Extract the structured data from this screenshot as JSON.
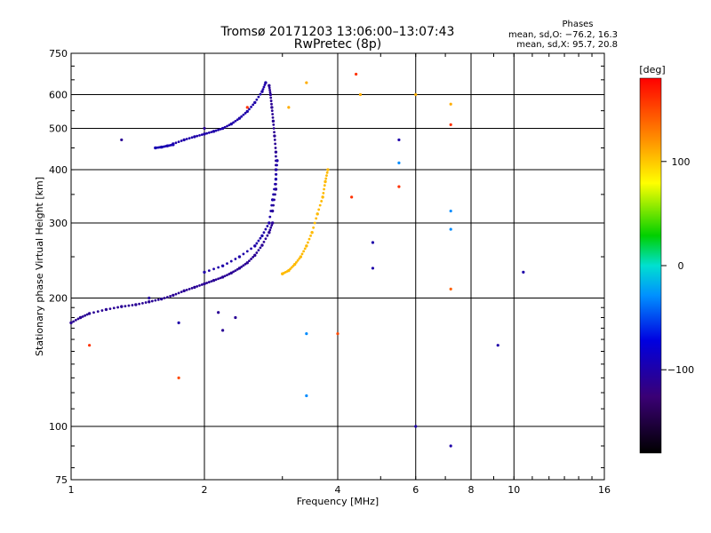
{
  "chart_data": {
    "type": "scatter",
    "title": "Tromsø 20171203 13:06:00–13:07:43",
    "subtitle": "RwPretec (8p)",
    "xlabel": "Frequency [MHz]",
    "ylabel": "Stationary phase Virtual Height [km]",
    "x_scale": "log",
    "y_scale": "log",
    "xlim": [
      1,
      16
    ],
    "ylim": [
      75,
      750
    ],
    "x_ticks": [
      "1",
      "2",
      "4",
      "6",
      "8",
      "10",
      "16"
    ],
    "y_ticks": [
      "75",
      "100",
      "200",
      "300",
      "400",
      "500",
      "600",
      "750"
    ],
    "grid": true,
    "phase_info": {
      "heading": "Phases",
      "line_o": "mean, sd,O: −76.2, 16.3",
      "line_x": "mean, sd,X:  95.7, 20.8"
    },
    "colorbar": {
      "label": "[deg]",
      "range": [
        -180,
        180
      ],
      "ticks": [
        "100",
        "0",
        "−100"
      ],
      "tick_values": [
        100,
        0,
        -100
      ]
    },
    "traces": [
      {
        "name": "",
        "phase": -110,
        "points": [
          [
            1.0,
            175
          ],
          [
            1.05,
            180
          ],
          [
            1.1,
            184
          ],
          [
            1.2,
            188
          ],
          [
            1.3,
            191
          ],
          [
            1.4,
            193
          ],
          [
            1.5,
            196
          ],
          [
            1.6,
            199
          ],
          [
            1.7,
            203
          ],
          [
            1.8,
            208
          ],
          [
            1.9,
            212
          ],
          [
            2.0,
            216
          ],
          [
            2.1,
            220
          ],
          [
            2.2,
            224
          ],
          [
            2.3,
            229
          ],
          [
            2.4,
            235
          ],
          [
            2.5,
            242
          ],
          [
            2.6,
            252
          ],
          [
            2.7,
            266
          ],
          [
            2.8,
            285
          ],
          [
            2.85,
            300
          ]
        ]
      },
      {
        "name": "",
        "phase": -110,
        "points": [
          [
            2.85,
            320
          ],
          [
            2.9,
            360
          ],
          [
            2.9,
            400
          ],
          [
            2.9,
            440
          ],
          [
            2.88,
            480
          ],
          [
            2.86,
            520
          ],
          [
            2.84,
            560
          ],
          [
            2.82,
            600
          ],
          [
            2.8,
            630
          ]
        ]
      },
      {
        "name": "",
        "phase": -100,
        "points": [
          [
            1.7,
            460
          ],
          [
            1.8,
            470
          ],
          [
            1.9,
            478
          ],
          [
            2.0,
            485
          ],
          [
            2.1,
            492
          ],
          [
            2.2,
            500
          ],
          [
            2.3,
            512
          ],
          [
            2.4,
            528
          ],
          [
            2.5,
            548
          ],
          [
            2.6,
            575
          ],
          [
            2.7,
            610
          ],
          [
            2.75,
            640
          ]
        ]
      },
      {
        "name": "",
        "phase": -95,
        "points": [
          [
            1.55,
            450
          ],
          [
            1.6,
            452
          ],
          [
            1.65,
            455
          ],
          [
            1.7,
            458
          ]
        ]
      },
      {
        "name": "",
        "phase": -100,
        "points": [
          [
            2.0,
            230
          ],
          [
            2.2,
            238
          ],
          [
            2.4,
            250
          ],
          [
            2.6,
            265
          ],
          [
            2.7,
            280
          ],
          [
            2.8,
            300
          ],
          [
            2.85,
            340
          ],
          [
            2.9,
            380
          ],
          [
            2.92,
            420
          ]
        ]
      },
      {
        "name": "",
        "phase": 105,
        "points": [
          [
            3.0,
            228
          ],
          [
            3.1,
            232
          ],
          [
            3.2,
            240
          ],
          [
            3.3,
            250
          ],
          [
            3.4,
            265
          ],
          [
            3.5,
            285
          ],
          [
            3.6,
            315
          ],
          [
            3.7,
            345
          ],
          [
            3.75,
            375
          ],
          [
            3.8,
            400
          ]
        ]
      }
    ],
    "scatter": [
      {
        "x": 1.1,
        "y": 155,
        "phase": 160
      },
      {
        "x": 1.3,
        "y": 470,
        "phase": -110
      },
      {
        "x": 1.5,
        "y": 200,
        "phase": -105
      },
      {
        "x": 1.75,
        "y": 130,
        "phase": 150
      },
      {
        "x": 1.75,
        "y": 175,
        "phase": -100
      },
      {
        "x": 2.0,
        "y": 500,
        "phase": -110
      },
      {
        "x": 2.15,
        "y": 185,
        "phase": -110
      },
      {
        "x": 2.2,
        "y": 168,
        "phase": -110
      },
      {
        "x": 2.35,
        "y": 180,
        "phase": -110
      },
      {
        "x": 2.5,
        "y": 560,
        "phase": 160
      },
      {
        "x": 3.1,
        "y": 560,
        "phase": 110
      },
      {
        "x": 3.4,
        "y": 640,
        "phase": 110
      },
      {
        "x": 3.4,
        "y": 165,
        "phase": -30
      },
      {
        "x": 3.4,
        "y": 118,
        "phase": -30
      },
      {
        "x": 4.0,
        "y": 165,
        "phase": 150
      },
      {
        "x": 4.3,
        "y": 345,
        "phase": 160
      },
      {
        "x": 4.4,
        "y": 670,
        "phase": 160
      },
      {
        "x": 4.5,
        "y": 600,
        "phase": 110
      },
      {
        "x": 4.8,
        "y": 270,
        "phase": -100
      },
      {
        "x": 4.8,
        "y": 235,
        "phase": -100
      },
      {
        "x": 5.5,
        "y": 470,
        "phase": -100
      },
      {
        "x": 5.5,
        "y": 415,
        "phase": -30
      },
      {
        "x": 5.5,
        "y": 365,
        "phase": 160
      },
      {
        "x": 6.0,
        "y": 600,
        "phase": 110
      },
      {
        "x": 6.0,
        "y": 100,
        "phase": -100
      },
      {
        "x": 7.2,
        "y": 570,
        "phase": 110
      },
      {
        "x": 7.2,
        "y": 510,
        "phase": 160
      },
      {
        "x": 7.2,
        "y": 320,
        "phase": -30
      },
      {
        "x": 7.2,
        "y": 290,
        "phase": -30
      },
      {
        "x": 7.2,
        "y": 210,
        "phase": 140
      },
      {
        "x": 7.2,
        "y": 90,
        "phase": -100
      },
      {
        "x": 9.2,
        "y": 155,
        "phase": -100
      },
      {
        "x": 10.5,
        "y": 230,
        "phase": -100
      }
    ]
  }
}
